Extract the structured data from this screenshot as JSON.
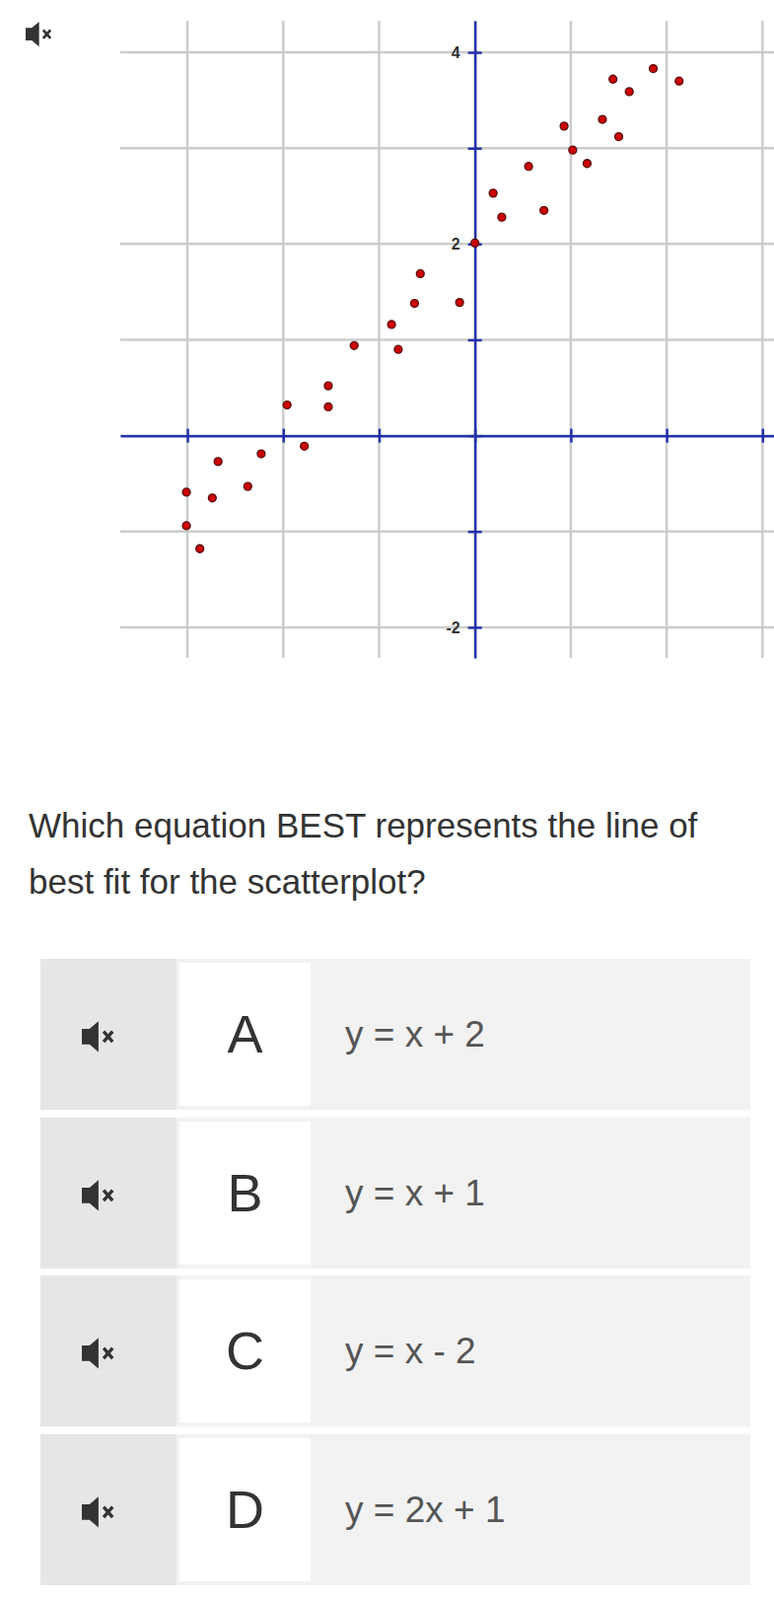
{
  "chart_data": {
    "type": "scatter",
    "x": [
      -3.01,
      -3.01,
      -2.87,
      -2.74,
      -2.68,
      -2.37,
      -2.23,
      -1.96,
      -1.78,
      -1.53,
      -1.53,
      -1.26,
      -0.87,
      -0.8,
      -0.63,
      -0.57,
      -0.16,
      0.0,
      0.19,
      0.28,
      0.56,
      0.72,
      0.93,
      1.02,
      1.17,
      1.33,
      1.5,
      1.44,
      1.61,
      1.86,
      2.13
    ],
    "values": [
      -0.59,
      -0.94,
      -1.18,
      -0.65,
      -0.27,
      -0.53,
      -0.19,
      0.32,
      -0.11,
      0.52,
      0.3,
      0.94,
      1.16,
      0.9,
      1.38,
      1.69,
      1.39,
      2.01,
      2.53,
      2.28,
      2.81,
      2.35,
      3.23,
      2.98,
      2.84,
      3.3,
      3.12,
      3.72,
      3.59,
      3.83,
      3.7
    ],
    "color": "#cc0000",
    "marker": "circle",
    "xlim": [
      -3.7,
      3.12
    ],
    "ylim": [
      -2.32,
      4.33
    ],
    "xticks": [
      -3,
      -2,
      -1,
      0,
      1,
      2,
      3
    ],
    "yticks": [
      -2,
      {
        "value": -1,
        "label": null
      },
      {
        "value": 0,
        "label": null
      },
      {
        "value": 1,
        "label": null
      },
      2,
      {
        "value": 3,
        "label": null
      },
      4
    ],
    "grid": true,
    "tick_labels": "y"
  },
  "question": "Which equation BEST represents the line of best fit for the scatterplot?",
  "options": [
    {
      "letter": "A",
      "text": "y = x + 2"
    },
    {
      "letter": "B",
      "text": "y = x + 1"
    },
    {
      "letter": "C",
      "text": "y = x - 2"
    },
    {
      "letter": "D",
      "text": "y = 2x + 1"
    }
  ]
}
